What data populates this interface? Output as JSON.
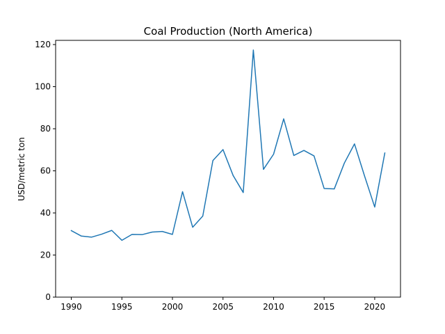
{
  "chart_data": {
    "type": "line",
    "title": "Coal Production (North America)",
    "xlabel": "",
    "ylabel": "USD/metric ton",
    "xlim": [
      1988.45,
      2022.55
    ],
    "ylim": [
      0,
      122
    ],
    "xticks": [
      1990,
      1995,
      2000,
      2005,
      2010,
      2015,
      2020
    ],
    "yticks": [
      0,
      20,
      40,
      60,
      80,
      100,
      120
    ],
    "grid": false,
    "line_color": "#1f77b4",
    "series": [
      {
        "x": [
          1990,
          1991,
          1992,
          1993,
          1994,
          1995,
          1996,
          1997,
          1998,
          1999,
          2000,
          2001,
          2002,
          2003,
          2004,
          2005,
          2006,
          2007,
          2008,
          2009,
          2010,
          2011,
          2012,
          2013,
          2014,
          2015,
          2016,
          2017,
          2018,
          2019,
          2020,
          2021
        ],
        "values": [
          31.6,
          29.0,
          28.5,
          29.9,
          31.7,
          27.0,
          29.8,
          29.7,
          30.9,
          31.2,
          29.8,
          50.1,
          33.2,
          38.5,
          64.9,
          70.1,
          57.8,
          49.7,
          117.4,
          60.7,
          67.9,
          84.7,
          67.3,
          69.7,
          67.1,
          51.6,
          51.4,
          63.7,
          72.8,
          57.5,
          42.8,
          68.5
        ]
      }
    ]
  }
}
